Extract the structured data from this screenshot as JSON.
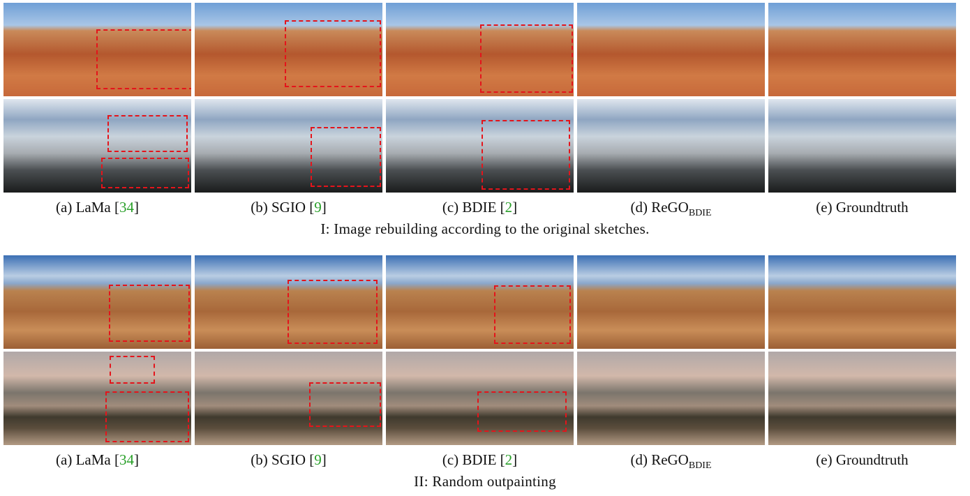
{
  "figure": {
    "sections": [
      {
        "title": "I: Image rebuilding according to the original sketches.",
        "captions": [
          {
            "prefix": "(a) LaMa [",
            "ref": "34",
            "suffix": "]"
          },
          {
            "prefix": "(b) SGIO [",
            "ref": "9",
            "suffix": "]"
          },
          {
            "prefix": "(c) BDIE [",
            "ref": "2",
            "suffix": "]"
          },
          {
            "prefix": "(d) ReGO",
            "sub": "BDIE"
          },
          {
            "prefix": "(e) Groundtruth"
          }
        ]
      },
      {
        "title": "II: Random outpainting",
        "captions": [
          {
            "prefix": "(a) LaMa [",
            "ref": "34",
            "suffix": "]"
          },
          {
            "prefix": "(b) SGIO [",
            "ref": "9",
            "suffix": "]"
          },
          {
            "prefix": "(c) BDIE [",
            "ref": "2",
            "suffix": "]"
          },
          {
            "prefix": "(d) ReGO",
            "sub": "BDIE"
          },
          {
            "prefix": "(e) Groundtruth"
          }
        ]
      }
    ]
  }
}
